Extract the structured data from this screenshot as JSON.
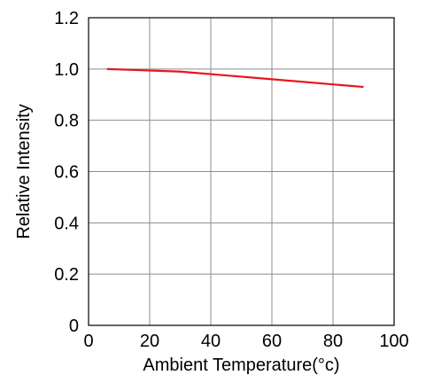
{
  "chart_data": {
    "type": "line",
    "title": "",
    "xlabel": "Ambient Temperature(°c)",
    "ylabel": "Relative Intensity",
    "xlim": [
      0,
      100
    ],
    "ylim": [
      0,
      1.2
    ],
    "xticks": [
      0,
      20,
      40,
      60,
      80,
      100
    ],
    "xtick_labels": [
      "0",
      "20",
      "40",
      "60",
      "80",
      "100"
    ],
    "yticks": [
      0,
      0.2,
      0.4,
      0.6,
      0.8,
      1.0,
      1.2
    ],
    "ytick_labels": [
      "0",
      "0.2",
      "0.4",
      "0.6",
      "0.8",
      "1.0",
      "1.2"
    ],
    "grid": true,
    "legend": "none",
    "series": [
      {
        "color": "#e8141b",
        "x": [
          6,
          30,
          60,
          90
        ],
        "y": [
          1.0,
          0.99,
          0.96,
          0.93
        ]
      }
    ]
  }
}
